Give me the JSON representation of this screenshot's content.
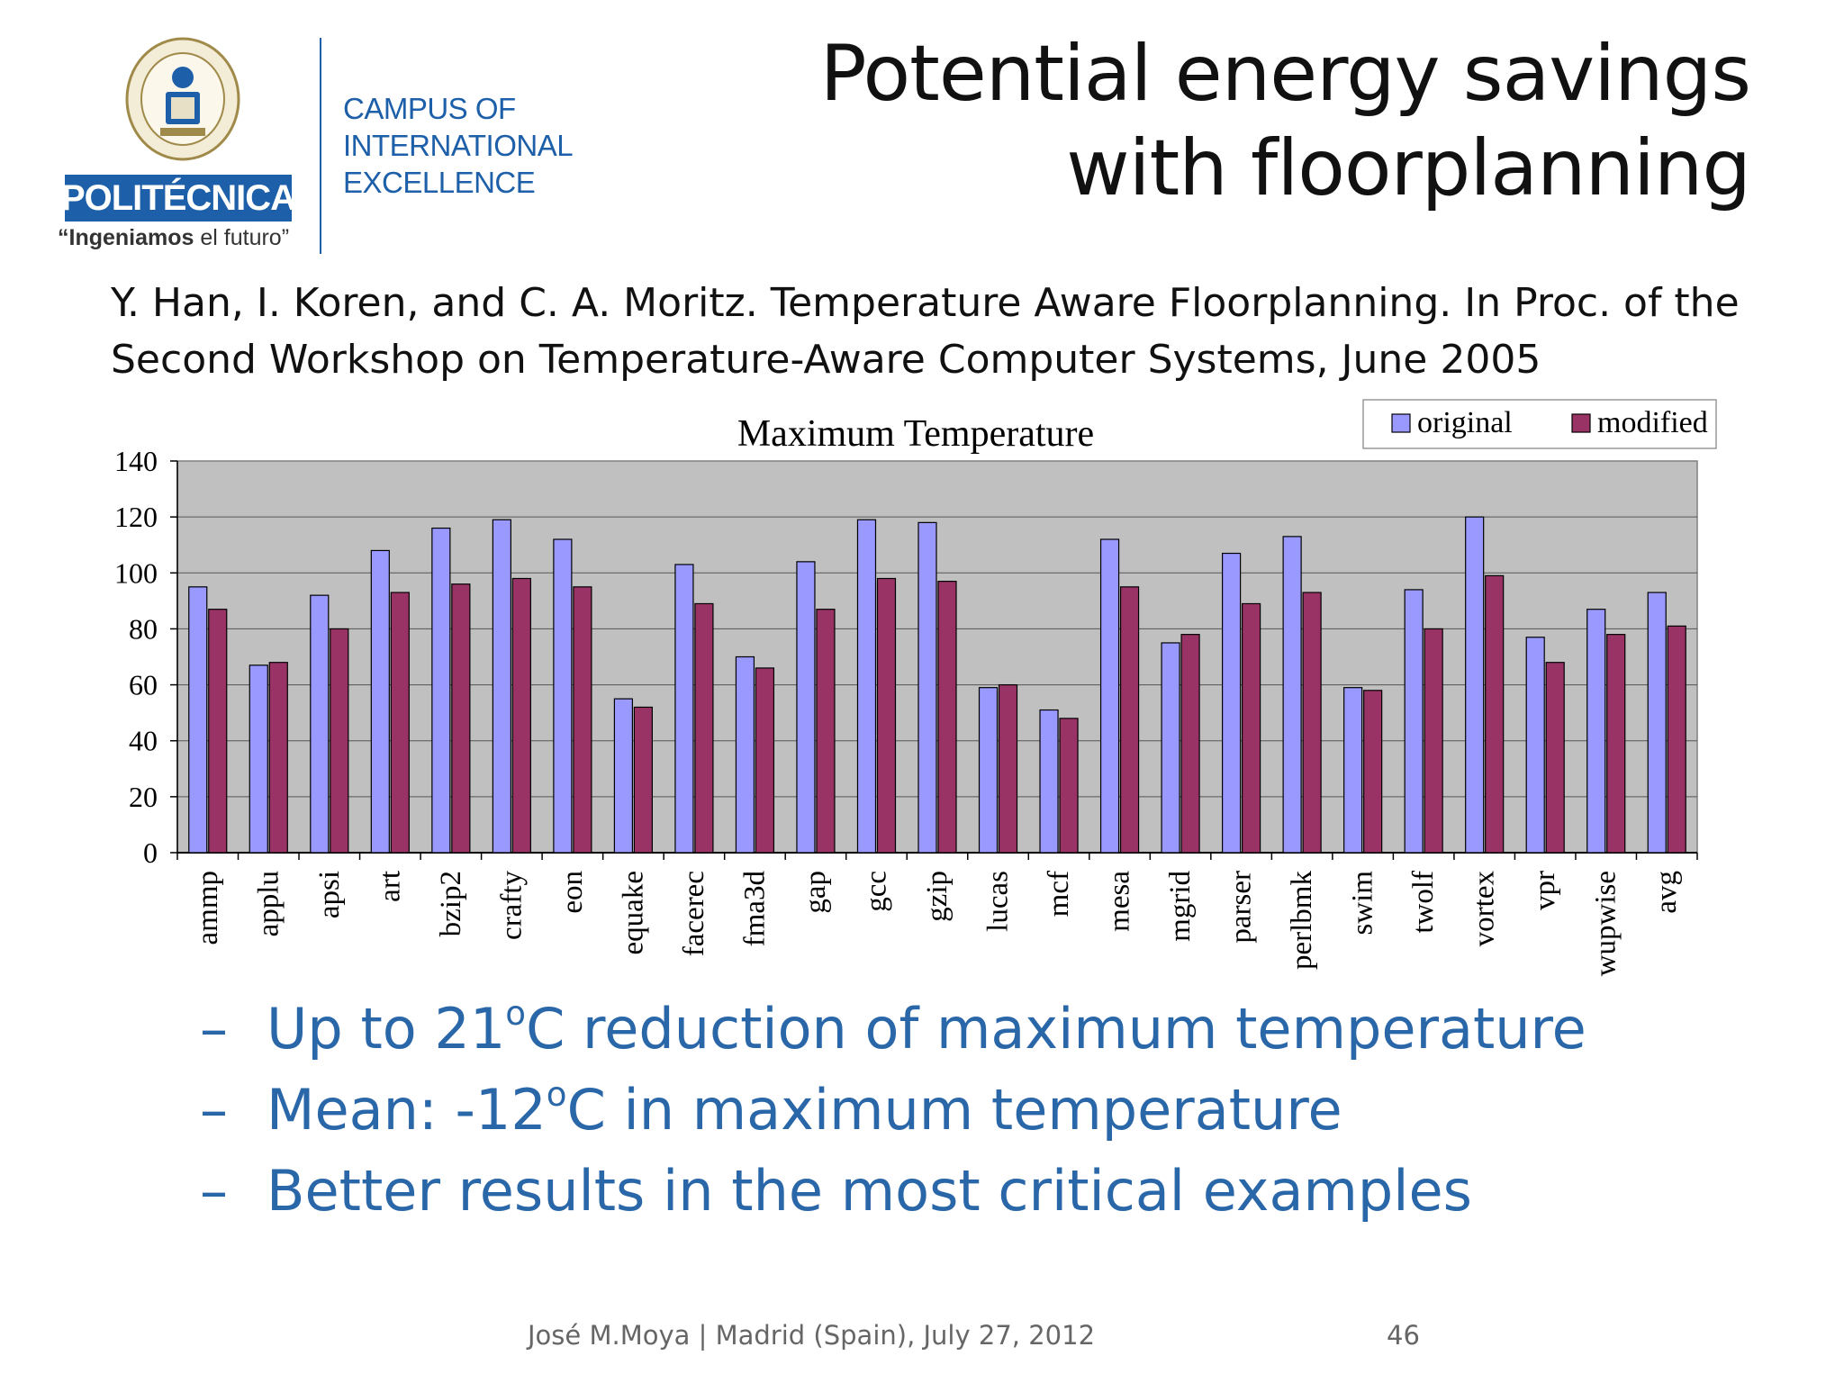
{
  "header": {
    "logo_badge": "POLITÉCNICA",
    "logo_tagline_bold": "“Ingeniamos",
    "logo_tagline_rest": " el futuro”",
    "campus_lines": [
      "CAMPUS OF",
      "INTERNATIONAL",
      "EXCELLENCE"
    ],
    "title_lines": [
      "Potential energy savings",
      "with floorplanning"
    ]
  },
  "citation": {
    "lines": [
      "Y. Han, I. Koren, and C. A. Moritz. Temperature Aware Floorplanning. In Proc. of the",
      "Second Workshop on Temperature-Aware Computer Systems, June 2005"
    ]
  },
  "chart_data": {
    "type": "bar",
    "title": "Maximum Temperature",
    "xlabel": "",
    "ylabel": "",
    "ylim": [
      0,
      140
    ],
    "yticks": [
      0,
      20,
      40,
      60,
      80,
      100,
      120,
      140
    ],
    "grid": true,
    "legend_position": "top-right",
    "categories": [
      "ammp",
      "applu",
      "apsi",
      "art",
      "bzip2",
      "crafty",
      "eon",
      "equake",
      "facerec",
      "fma3d",
      "gap",
      "gcc",
      "gzip",
      "lucas",
      "mcf",
      "mesa",
      "mgrid",
      "parser",
      "perlbmk",
      "swim",
      "twolf",
      "vortex",
      "vpr",
      "wupwise",
      "avg"
    ],
    "series": [
      {
        "name": "original",
        "color": "#9999ff",
        "values": [
          95,
          67,
          92,
          108,
          116,
          119,
          112,
          55,
          103,
          70,
          104,
          119,
          118,
          59,
          51,
          112,
          75,
          107,
          113,
          59,
          94,
          120,
          77,
          87,
          93
        ]
      },
      {
        "name": "modified",
        "color": "#993366",
        "values": [
          87,
          68,
          80,
          93,
          96,
          98,
          95,
          52,
          89,
          66,
          87,
          98,
          97,
          60,
          48,
          95,
          78,
          89,
          93,
          58,
          80,
          99,
          68,
          78,
          81
        ]
      }
    ],
    "plot_bg": "#c0c0c0"
  },
  "bullets": {
    "dash": "–",
    "items": [
      {
        "before": "Up to 21",
        "sup": "o",
        "after": "C reduction of maximum temperature"
      },
      {
        "before": "Mean: -12",
        "sup": "o",
        "after": "C in maximum temperature"
      },
      {
        "before": "Better results in the most critical examples",
        "sup": "",
        "after": ""
      }
    ]
  },
  "footer": {
    "text": "José M.Moya |  Madrid (Spain), July 27, 2012",
    "page": "46"
  }
}
